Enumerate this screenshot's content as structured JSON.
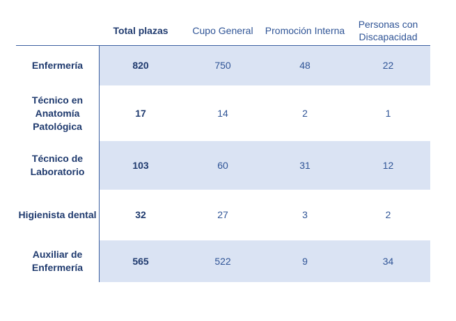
{
  "headers": {
    "total": "Total plazas",
    "cupo": "Cupo General",
    "promocion": "Promoción Interna",
    "discapacidad": "Personas con Discapacidad"
  },
  "rows": [
    {
      "name": "Enfermería",
      "total": "820",
      "cupo": "750",
      "promocion": "48",
      "discapacidad": "22"
    },
    {
      "name": "Técnico en Anatomía Patológica",
      "total": "17",
      "cupo": "14",
      "promocion": "2",
      "discapacidad": "1"
    },
    {
      "name": "Técnico de Laboratorio",
      "total": "103",
      "cupo": "60",
      "promocion": "31",
      "discapacidad": "12"
    },
    {
      "name": "Higienista dental",
      "total": "32",
      "cupo": "27",
      "promocion": "3",
      "discapacidad": "2"
    },
    {
      "name": "Auxiliar de Enfermería",
      "total": "565",
      "cupo": "522",
      "promocion": "9",
      "discapacidad": "34"
    }
  ],
  "colors": {
    "header_text": "#1f3a6e",
    "body_text": "#2f5496",
    "band": "#dae3f3",
    "rule": "#3b5fa0"
  }
}
